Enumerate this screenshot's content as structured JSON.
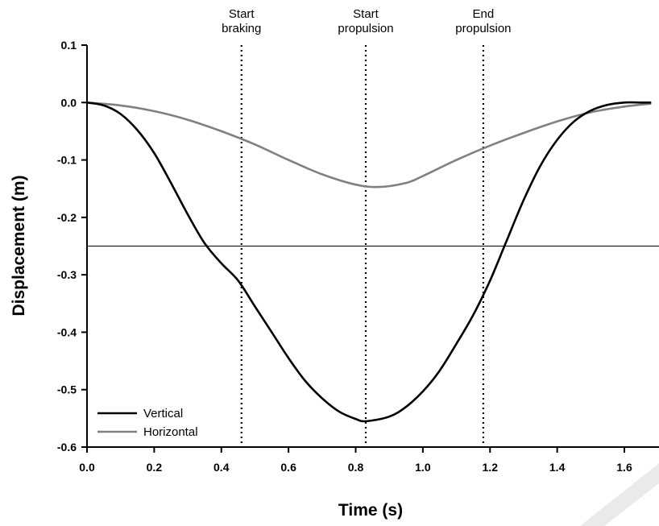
{
  "chart_data": {
    "type": "line",
    "title": "",
    "xlabel": "Time (s)",
    "ylabel": "Displacement (m)",
    "xlim": [
      0.0,
      1.6
    ],
    "ylim": [
      -0.6,
      0.1
    ],
    "x_ticks": [
      "0.0",
      "0.2",
      "0.4",
      "0.6",
      "0.8",
      "1.0",
      "1.2",
      "1.4",
      "1.6"
    ],
    "y_ticks": [
      "0.1",
      "0.0",
      "-0.1",
      "-0.2",
      "-0.3",
      "-0.4",
      "-0.5",
      "-0.6"
    ],
    "grid": false,
    "legend_position": "bottom-left",
    "reference_line_y": -0.25,
    "vertical_markers": [
      {
        "x": 0.46,
        "label_lines": [
          "Start",
          "braking"
        ]
      },
      {
        "x": 0.83,
        "label_lines": [
          "Start",
          "propulsion"
        ]
      },
      {
        "x": 1.18,
        "label_lines": [
          "End",
          "propulsion"
        ]
      }
    ],
    "series": [
      {
        "name": "Vertical",
        "color": "#000000",
        "x": [
          0.0,
          0.05,
          0.1,
          0.15,
          0.2,
          0.25,
          0.3,
          0.35,
          0.4,
          0.45,
          0.5,
          0.55,
          0.6,
          0.65,
          0.7,
          0.75,
          0.8,
          0.83,
          0.9,
          0.95,
          1.0,
          1.05,
          1.1,
          1.15,
          1.2,
          1.25,
          1.3,
          1.35,
          1.4,
          1.45,
          1.5,
          1.55,
          1.6,
          1.65,
          1.68
        ],
        "y": [
          0.0,
          -0.005,
          -0.02,
          -0.048,
          -0.088,
          -0.14,
          -0.195,
          -0.245,
          -0.28,
          -0.31,
          -0.355,
          -0.4,
          -0.445,
          -0.485,
          -0.515,
          -0.538,
          -0.551,
          -0.555,
          -0.547,
          -0.53,
          -0.503,
          -0.467,
          -0.42,
          -0.37,
          -0.31,
          -0.24,
          -0.17,
          -0.11,
          -0.065,
          -0.033,
          -0.014,
          -0.004,
          0.0,
          0.0,
          0.0
        ]
      },
      {
        "name": "Horizontal",
        "color": "#808080",
        "x": [
          0.0,
          0.1,
          0.2,
          0.3,
          0.4,
          0.5,
          0.6,
          0.7,
          0.8,
          0.87,
          0.95,
          1.0,
          1.1,
          1.2,
          1.3,
          1.4,
          1.5,
          1.6,
          1.68
        ],
        "y": [
          0.0,
          -0.005,
          -0.015,
          -0.03,
          -0.05,
          -0.073,
          -0.1,
          -0.125,
          -0.143,
          -0.147,
          -0.14,
          -0.128,
          -0.1,
          -0.075,
          -0.053,
          -0.033,
          -0.017,
          -0.007,
          -0.002
        ]
      }
    ]
  }
}
